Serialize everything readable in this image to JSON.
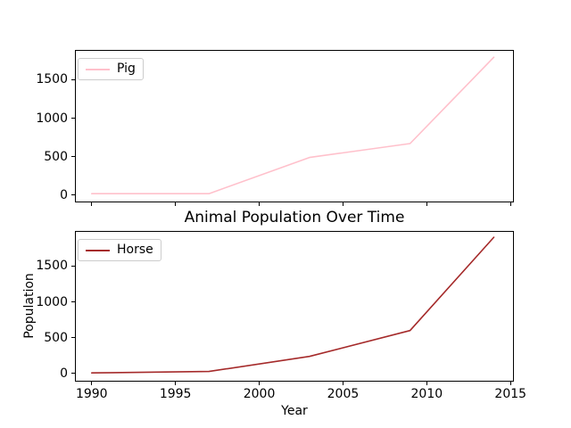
{
  "figure": {
    "title": "Animal Population Over Time",
    "xlabel": "Year",
    "ylabel": "Population",
    "background": "#ffffff",
    "spine_color": "#000000"
  },
  "chart_data": [
    {
      "type": "line",
      "subplot": "top",
      "series": [
        {
          "name": "Pig",
          "color": "#FFC0CB",
          "x": [
            1990,
            1997,
            2003,
            2009,
            2014
          ],
          "y": [
            20,
            20,
            490,
            670,
            1790
          ]
        }
      ],
      "xlim": [
        1989.0,
        2015.2
      ],
      "ylim": [
        -93,
        1885
      ],
      "xticks": [
        1990,
        1995,
        2000,
        2005,
        2010,
        2015
      ],
      "yticks": [
        0,
        500,
        1000,
        1500
      ],
      "show_xtick_labels": false,
      "grid": false,
      "legend": {
        "label": "Pig",
        "position": "upper left"
      }
    },
    {
      "type": "line",
      "subplot": "bottom",
      "title": "Animal Population Over Time",
      "series": [
        {
          "name": "Horse",
          "color": "#A52A2A",
          "x": [
            1990,
            1997,
            2003,
            2009,
            2014
          ],
          "y": [
            10,
            30,
            240,
            600,
            1900
          ]
        }
      ],
      "xlim": [
        1989.0,
        2015.2
      ],
      "ylim": [
        -112,
        1988
      ],
      "xticks": [
        1990,
        1995,
        2000,
        2005,
        2010,
        2015
      ],
      "yticks": [
        0,
        500,
        1000,
        1500
      ],
      "show_xtick_labels": true,
      "grid": false,
      "legend": {
        "label": "Horse",
        "position": "upper left"
      }
    }
  ]
}
